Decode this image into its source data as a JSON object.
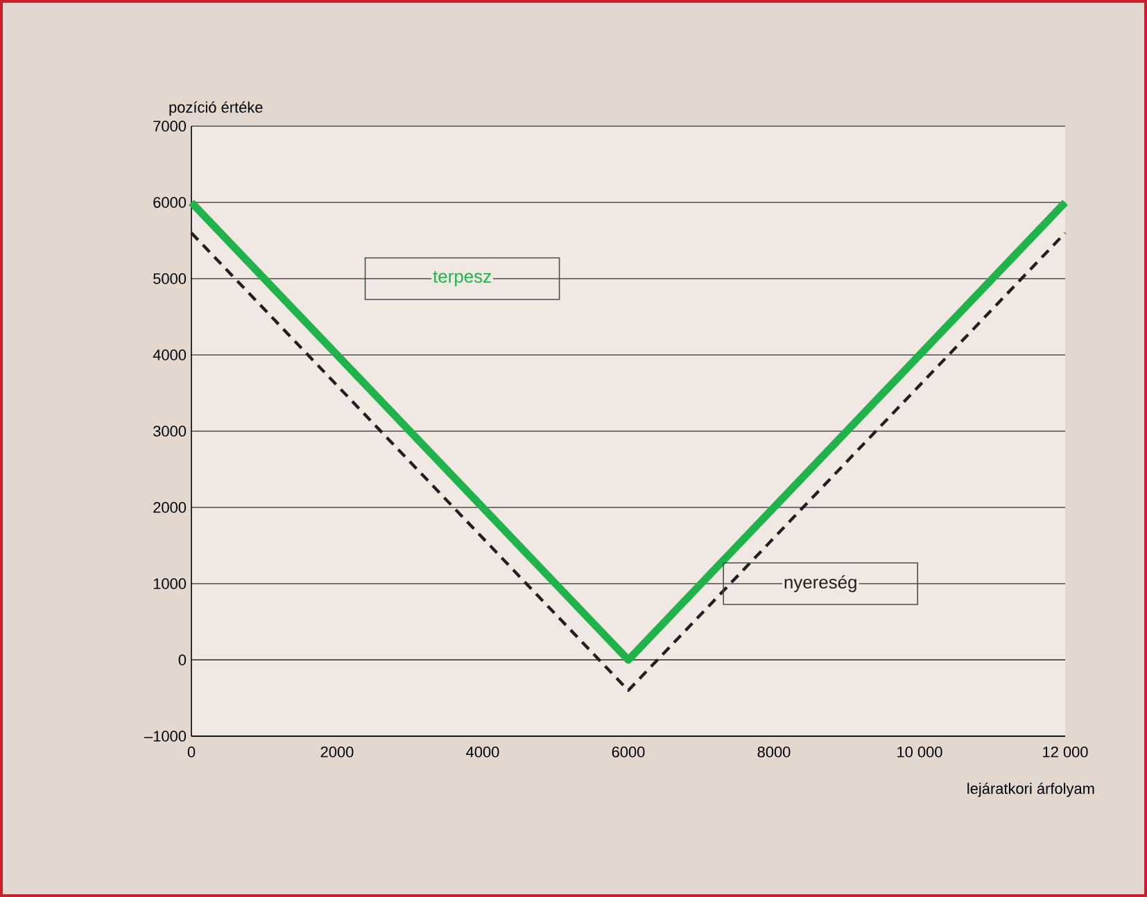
{
  "chart_data": {
    "type": "line",
    "xlabel": "lejáratkori árfolyam",
    "ylabel": "pozíció értéke",
    "x": [
      0,
      6000,
      12000
    ],
    "series": [
      {
        "name": "terpesz",
        "color": "#22b24c",
        "values": [
          6000,
          0,
          6000
        ],
        "line_style": "solid"
      },
      {
        "name": "nyereség",
        "color": "#231f20",
        "values": [
          5600,
          -400,
          5600
        ],
        "line_style": "dashed"
      }
    ],
    "xlim": [
      0,
      12000
    ],
    "ylim": [
      -1000,
      7000
    ],
    "xticks": [
      0,
      2000,
      4000,
      6000,
      8000,
      {
        "value": 10000,
        "label": "10 000"
      },
      {
        "value": 12000,
        "label": "12 000"
      }
    ],
    "yticks": [
      {
        "value": -1000,
        "label": "–1000"
      },
      0,
      1000,
      2000,
      3000,
      4000,
      5000,
      6000,
      7000
    ],
    "grid": "y",
    "marker": "none"
  }
}
